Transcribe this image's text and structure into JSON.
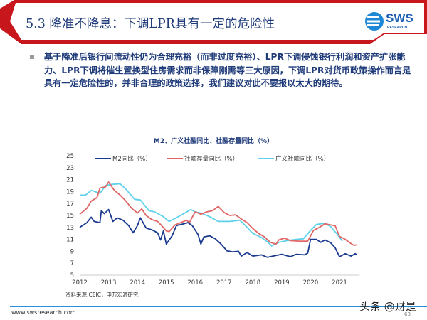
{
  "header": {
    "title": "5.3 降准不降息：下调LPR具有一定的危险性",
    "logo_text": "SWS",
    "logo_sub": "RESEARCH"
  },
  "body": {
    "text": "基于降准后银行间流动性仍为合理充裕（而非过度充裕）、LPR下调侵蚀银行利润和资产扩张能力、LPR下调将催生置换型住房需求而非保障刚需等三大原因，下调LPR对货币政策操作而言是具有一定危险性的，并非合理的政策选择，我们建议对此不要报以太大的期待。"
  },
  "chart_data": {
    "type": "line",
    "title": "M2、广义社融同比、社融存量同比（%）",
    "xlabel": "",
    "ylabel": "",
    "xlim": [
      2012,
      2021.6
    ],
    "ylim": [
      5,
      25
    ],
    "yticks": [
      5,
      7,
      9,
      11,
      13,
      15,
      17,
      19,
      21,
      23,
      25
    ],
    "xticks": [
      2012,
      2013,
      2014,
      2015,
      2016,
      2017,
      2018,
      2019,
      2020,
      2021
    ],
    "grid": false,
    "legend": "top",
    "series": [
      {
        "name": "M2同比（%）",
        "color": "#1a3a8f",
        "points": [
          [
            2012,
            13
          ],
          [
            2012.25,
            13.8
          ],
          [
            2012.4,
            14.7
          ],
          [
            2012.5,
            14
          ],
          [
            2012.7,
            13.8
          ],
          [
            2012.75,
            15.8
          ],
          [
            2012.85,
            15.3
          ],
          [
            2013.0,
            16
          ],
          [
            2013.15,
            14
          ],
          [
            2013.3,
            14.6
          ],
          [
            2013.5,
            14.2
          ],
          [
            2013.7,
            13.3
          ],
          [
            2013.85,
            12.1
          ],
          [
            2014.0,
            13.3
          ],
          [
            2014.1,
            14.6
          ],
          [
            2014.3,
            12.9
          ],
          [
            2014.5,
            12.6
          ],
          [
            2014.7,
            12.1
          ],
          [
            2014.8,
            10.9
          ],
          [
            2014.9,
            12.4
          ],
          [
            2015.0,
            10.2
          ],
          [
            2015.2,
            11.6
          ],
          [
            2015.35,
            13.3
          ],
          [
            2015.6,
            13.6
          ],
          [
            2015.75,
            13.8
          ],
          [
            2015.9,
            13.3
          ],
          [
            2016.1,
            11.8
          ],
          [
            2016.2,
            10.2
          ],
          [
            2016.3,
            11.4
          ],
          [
            2016.5,
            11.6
          ],
          [
            2016.7,
            11.1
          ],
          [
            2016.9,
            10.2
          ],
          [
            2017.1,
            9.1
          ],
          [
            2017.3,
            8.9
          ],
          [
            2017.5,
            9.0
          ],
          [
            2017.6,
            8.2
          ],
          [
            2017.8,
            8.8
          ],
          [
            2018.0,
            8.2
          ],
          [
            2018.3,
            8.4
          ],
          [
            2018.5,
            8.0
          ],
          [
            2018.8,
            8.3
          ],
          [
            2019.0,
            8.5
          ],
          [
            2019.3,
            8.1
          ],
          [
            2019.5,
            8.5
          ],
          [
            2019.8,
            8.4
          ],
          [
            2019.9,
            8.7
          ],
          [
            2020.0,
            11
          ],
          [
            2020.2,
            11
          ],
          [
            2020.35,
            10.5
          ],
          [
            2020.5,
            10.9
          ],
          [
            2020.7,
            10.4
          ],
          [
            2020.85,
            9.6
          ],
          [
            2021.0,
            8.1
          ],
          [
            2021.2,
            8.6
          ],
          [
            2021.4,
            8.2
          ],
          [
            2021.55,
            8.6
          ],
          [
            2021.6,
            8.4
          ]
        ]
      },
      {
        "name": "社融存量同比（%）",
        "color": "#e06666",
        "points": [
          [
            2012,
            15.2
          ],
          [
            2012.25,
            16.2
          ],
          [
            2012.4,
            17.4
          ],
          [
            2012.6,
            18
          ],
          [
            2012.7,
            19.6
          ],
          [
            2012.9,
            19.8
          ],
          [
            2013.0,
            20.6
          ],
          [
            2013.2,
            19.2
          ],
          [
            2013.4,
            18.4
          ],
          [
            2013.6,
            17.4
          ],
          [
            2013.8,
            16.2
          ],
          [
            2014.0,
            15.4
          ],
          [
            2014.15,
            16.1
          ],
          [
            2014.3,
            15
          ],
          [
            2014.5,
            14.3
          ],
          [
            2014.7,
            14.0
          ],
          [
            2014.8,
            13.5
          ],
          [
            2015.0,
            12.4
          ],
          [
            2015.1,
            12.3
          ],
          [
            2015.3,
            13.4
          ],
          [
            2015.5,
            13.8
          ],
          [
            2015.7,
            14.2
          ],
          [
            2015.8,
            13.8
          ],
          [
            2016.0,
            15.6
          ],
          [
            2016.2,
            15.2
          ],
          [
            2016.4,
            15.6
          ],
          [
            2016.6,
            15.8
          ],
          [
            2016.8,
            16.5
          ],
          [
            2017.0,
            15.5
          ],
          [
            2017.2,
            15.0
          ],
          [
            2017.4,
            15.1
          ],
          [
            2017.6,
            14.4
          ],
          [
            2017.8,
            13.8
          ],
          [
            2018.0,
            12.8
          ],
          [
            2018.2,
            12
          ],
          [
            2018.4,
            11.4
          ],
          [
            2018.6,
            10.5
          ],
          [
            2018.8,
            10.2
          ],
          [
            2018.9,
            10.9
          ],
          [
            2019.1,
            11.2
          ],
          [
            2019.3,
            10.8
          ],
          [
            2019.6,
            10.7
          ],
          [
            2019.9,
            10.7
          ],
          [
            2020.1,
            12.5
          ],
          [
            2020.3,
            13.0
          ],
          [
            2020.5,
            13.6
          ],
          [
            2020.7,
            13.4
          ],
          [
            2020.85,
            13.3
          ],
          [
            2021.0,
            11.5
          ],
          [
            2021.2,
            11
          ],
          [
            2021.4,
            10.3
          ],
          [
            2021.5,
            10
          ],
          [
            2021.6,
            10.1
          ]
        ]
      },
      {
        "name": "广义社融同比（%）",
        "color": "#5ed0ea",
        "points": [
          [
            2012,
            18.4
          ],
          [
            2012.2,
            18.4
          ],
          [
            2012.4,
            19.2
          ],
          [
            2012.7,
            18.7
          ],
          [
            2012.9,
            20
          ],
          [
            2013.1,
            20.2
          ],
          [
            2013.4,
            20.3
          ],
          [
            2013.6,
            19.4
          ],
          [
            2013.9,
            17.7
          ],
          [
            2014.1,
            17.6
          ],
          [
            2014.4,
            15.8
          ],
          [
            2014.6,
            15.6
          ],
          [
            2014.9,
            14.8
          ],
          [
            2015.1,
            14.0
          ],
          [
            2015.5,
            15
          ],
          [
            2015.85,
            16
          ],
          [
            2016.0,
            15.6
          ],
          [
            2016.2,
            15.4
          ],
          [
            2016.5,
            14.8
          ],
          [
            2016.8,
            14.0
          ],
          [
            2017.2,
            14.0
          ],
          [
            2017.55,
            14.2
          ],
          [
            2017.8,
            13.0
          ],
          [
            2018.0,
            12
          ],
          [
            2018.3,
            11.3
          ],
          [
            2018.5,
            10.6
          ],
          [
            2018.65,
            9.9
          ],
          [
            2018.9,
            10.5
          ],
          [
            2019.2,
            10.8
          ],
          [
            2019.5,
            11
          ],
          [
            2019.75,
            11.1
          ],
          [
            2020.0,
            12.5
          ],
          [
            2020.2,
            13.5
          ],
          [
            2020.5,
            13.7
          ],
          [
            2020.7,
            13.1
          ],
          [
            2020.9,
            12
          ],
          [
            2021.1,
            10.7
          ]
        ]
      }
    ],
    "source": "资料来源:CEIC，申万宏源研究"
  },
  "footer": {
    "url": "www.swsresearch.com",
    "page": "68",
    "watermark": "头条 @财是"
  },
  "colors": {
    "accent_red": "#c8161d",
    "title_blue": "#1f3b7a"
  }
}
